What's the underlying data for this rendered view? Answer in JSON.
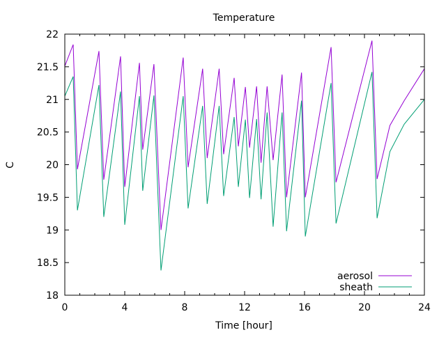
{
  "chart_data": {
    "type": "line",
    "title": "Temperature",
    "xlabel": "Time [hour]",
    "ylabel": "C",
    "xlim": [
      0,
      24
    ],
    "ylim": [
      18,
      22
    ],
    "xticks": [
      0,
      4,
      8,
      12,
      16,
      20,
      24
    ],
    "yticks": [
      18,
      18.5,
      19,
      19.5,
      20,
      20.5,
      21,
      21.5,
      22
    ],
    "ytick_labels": [
      "18",
      "18.5",
      "19",
      "19.5",
      "20",
      "20.5",
      "21",
      "21.5",
      "22"
    ],
    "xtick_labels": [
      "0",
      "4",
      "8",
      "12",
      "16",
      "20",
      "24"
    ],
    "legend_position": "bottom-right",
    "grid": false,
    "series": [
      {
        "name": "aerosol",
        "color": "#9400d3",
        "x": [
          0,
          0.56,
          0.84,
          2.28,
          2.6,
          3.72,
          4.0,
          4.98,
          5.2,
          5.95,
          6.42,
          7.9,
          8.23,
          9.2,
          9.5,
          10.3,
          10.6,
          11.3,
          11.58,
          12.05,
          12.33,
          12.8,
          13.1,
          13.5,
          13.9,
          14.5,
          14.8,
          15.8,
          16.05,
          17.77,
          18.1,
          20.5,
          20.84,
          21.7,
          22.65,
          24
        ],
        "y": [
          21.51,
          21.84,
          19.93,
          21.74,
          19.77,
          21.66,
          19.66,
          21.56,
          20.23,
          21.54,
          19.0,
          21.64,
          19.96,
          21.47,
          20.1,
          21.47,
          20.16,
          21.33,
          20.28,
          21.19,
          20.26,
          21.2,
          20.03,
          21.2,
          20.07,
          21.38,
          19.5,
          21.41,
          19.5,
          21.8,
          19.73,
          21.9,
          19.78,
          20.6,
          20.98,
          21.47
        ]
      },
      {
        "name": "sheath",
        "color": "#009e73",
        "x": [
          0,
          0.56,
          0.84,
          2.28,
          2.6,
          3.72,
          4.0,
          4.98,
          5.2,
          5.95,
          6.42,
          7.9,
          8.23,
          9.2,
          9.5,
          10.3,
          10.6,
          11.3,
          11.58,
          12.05,
          12.33,
          12.8,
          13.1,
          13.5,
          13.9,
          14.5,
          14.8,
          15.8,
          16.05,
          17.77,
          18.1,
          20.5,
          20.84,
          21.7,
          22.65,
          24
        ],
        "y": [
          21.05,
          21.35,
          19.3,
          21.22,
          19.2,
          21.12,
          19.08,
          21.05,
          19.6,
          21.06,
          18.38,
          21.05,
          19.33,
          20.9,
          19.4,
          20.9,
          19.52,
          20.73,
          19.66,
          20.69,
          19.49,
          20.7,
          19.47,
          20.8,
          19.05,
          20.8,
          18.98,
          20.98,
          18.9,
          21.25,
          19.1,
          21.42,
          19.18,
          20.2,
          20.62,
          21.0
        ]
      }
    ]
  }
}
